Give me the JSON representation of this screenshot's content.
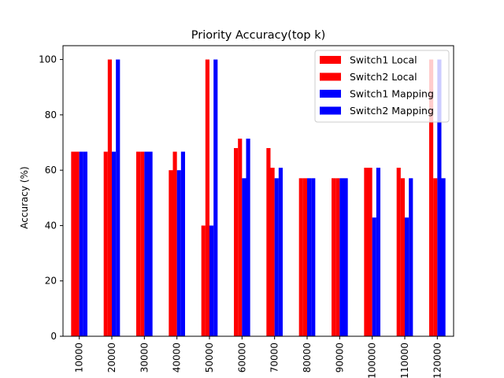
{
  "chart_data": {
    "type": "bar",
    "title": "Priority Accuracy(top k)",
    "xlabel": "",
    "ylabel": "Accuracy (%)",
    "ylim": [
      0,
      105
    ],
    "yticks": [
      0,
      20,
      40,
      60,
      80,
      100
    ],
    "categories": [
      "10000",
      "20000",
      "30000",
      "40000",
      "50000",
      "60000",
      "70000",
      "80000",
      "90000",
      "100000",
      "110000",
      "120000"
    ],
    "grid": false,
    "legend": "top-right",
    "series": [
      {
        "name": "Switch1 Local",
        "color": "#ff0000",
        "values": [
          66.7,
          66.7,
          66.7,
          60,
          40,
          68,
          68,
          57.1,
          57.1,
          60.9,
          60.9,
          100
        ]
      },
      {
        "name": "Switch2 Local",
        "color": "#ff0000",
        "values": [
          66.7,
          100,
          66.7,
          66.7,
          100,
          71.4,
          60.9,
          57.1,
          57.1,
          60.9,
          57.1,
          57.1
        ]
      },
      {
        "name": "Switch1 Mapping",
        "color": "#0000ff",
        "values": [
          66.7,
          66.7,
          66.7,
          60,
          40,
          57.1,
          57.1,
          57.1,
          57.1,
          42.9,
          42.9,
          100
        ]
      },
      {
        "name": "Switch2 Mapping",
        "color": "#0000ff",
        "values": [
          66.7,
          100,
          66.7,
          66.7,
          100,
          71.4,
          60.9,
          57.1,
          57.1,
          60.9,
          57.1,
          57.1
        ]
      }
    ]
  }
}
